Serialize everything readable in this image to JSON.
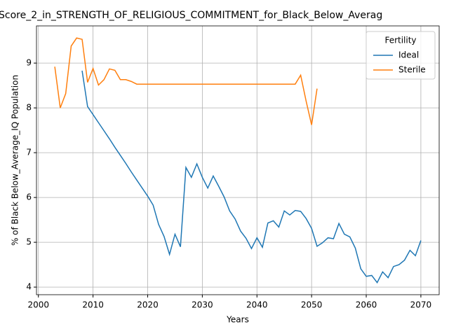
{
  "chart_data": {
    "type": "line",
    "title": "Score_2_in_STRENGTH_OF_RELIGIOUS_COMMITMENT_for_Black_Below_Averag",
    "xlabel": "Years",
    "ylabel": "% of Black Below_Average_IQ Population",
    "x": [
      2003,
      2004,
      2005,
      2006,
      2007,
      2008,
      2009,
      2010,
      2011,
      2012,
      2013,
      2014,
      2015,
      2016,
      2017,
      2018,
      2019,
      2020,
      2021,
      2022,
      2023,
      2024,
      2025,
      2026,
      2027,
      2028,
      2029,
      2030,
      2031,
      2032,
      2033,
      2034,
      2035,
      2036,
      2037,
      2038,
      2039,
      2040,
      2041,
      2042,
      2043,
      2044,
      2045,
      2046,
      2047,
      2048,
      2049,
      2050,
      2051,
      2052,
      2053,
      2054,
      2055,
      2056,
      2057,
      2058,
      2059,
      2060,
      2061,
      2062,
      2063,
      2064,
      2065,
      2066,
      2067,
      2068,
      2069,
      2070
    ],
    "series": [
      {
        "name": "Ideal",
        "color": "#1f77b4",
        "values": [
          null,
          null,
          null,
          null,
          null,
          8.83,
          8.03,
          7.85,
          7.67,
          7.49,
          7.31,
          7.12,
          6.94,
          6.76,
          6.57,
          6.39,
          6.21,
          6.03,
          5.83,
          5.4,
          5.13,
          4.73,
          5.18,
          4.9,
          6.67,
          6.45,
          6.75,
          6.45,
          6.21,
          6.48,
          6.25,
          6.01,
          5.7,
          5.52,
          5.25,
          5.09,
          4.86,
          5.1,
          4.89,
          5.43,
          5.48,
          5.34,
          5.7,
          5.61,
          5.71,
          5.69,
          5.53,
          5.31,
          4.91,
          4.99,
          5.1,
          5.08,
          5.42,
          5.18,
          5.12,
          4.87,
          4.41,
          4.24,
          4.26,
          4.1,
          4.34,
          4.21,
          4.46,
          4.5,
          4.6,
          4.82,
          4.7,
          5.04
        ]
      },
      {
        "name": "Sterile",
        "color": "#ff7f0e",
        "values": [
          8.92,
          8.0,
          8.32,
          9.38,
          9.56,
          9.53,
          8.57,
          8.88,
          8.51,
          8.63,
          8.87,
          8.84,
          8.63,
          8.63,
          8.59,
          8.53,
          8.53,
          8.53,
          8.53,
          8.53,
          8.53,
          8.53,
          8.53,
          8.53,
          8.53,
          8.53,
          8.53,
          8.53,
          8.53,
          8.53,
          8.53,
          8.53,
          8.53,
          8.53,
          8.53,
          8.53,
          8.53,
          8.53,
          8.53,
          8.53,
          8.53,
          8.53,
          8.53,
          8.53,
          8.53,
          8.73,
          8.15,
          7.62,
          8.43,
          null,
          null,
          null,
          null,
          null,
          null,
          null,
          null,
          null,
          null,
          null,
          null,
          null,
          null,
          null,
          null,
          null,
          null,
          null
        ]
      }
    ],
    "xlim": [
      1999.65,
      2073.35
    ],
    "xticks": [
      2000,
      2010,
      2020,
      2030,
      2040,
      2050,
      2060,
      2070
    ],
    "ylim": [
      3.83,
      9.83
    ],
    "yticks": [
      4,
      5,
      6,
      7,
      8,
      9
    ],
    "grid": true,
    "legend_title": "Fertility",
    "legend_position": "upper right"
  }
}
